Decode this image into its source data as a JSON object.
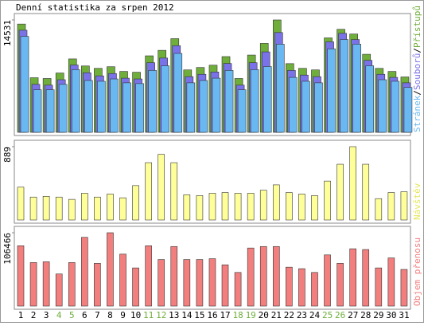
{
  "chart_data": [
    {
      "type": "bar",
      "title": "Denní statistika za srpen 2012",
      "legend_separator": "/",
      "ylim": [
        0,
        14531
      ],
      "yticks": [
        14531
      ],
      "series": [
        {
          "name": "Přístupů",
          "color": "#6fae3a",
          "values": [
            14000,
            7060,
            6960,
            7670,
            9490,
            8580,
            8270,
            8480,
            7870,
            7770,
            9890,
            10600,
            12110,
            8070,
            8380,
            8680,
            9790,
            6960,
            9990,
            11500,
            14531,
            8880,
            8270,
            8070,
            12210,
            13320,
            12710,
            10090,
            8270,
            7870,
            7160
          ]
        },
        {
          "name": "Souborů",
          "color": "#7a72e8",
          "values": [
            13200,
            6200,
            6100,
            6800,
            8700,
            7700,
            7300,
            7600,
            7000,
            6900,
            9000,
            9600,
            11200,
            7200,
            7500,
            7800,
            8900,
            6100,
            9000,
            10400,
            12900,
            8000,
            7400,
            7200,
            11700,
            12800,
            12000,
            9300,
            7500,
            7100,
            6400
          ]
        },
        {
          "name": "Stránek",
          "color": "#6ab8f2",
          "values": [
            12400,
            5500,
            5500,
            6200,
            8100,
            6700,
            6600,
            6900,
            6400,
            6300,
            8000,
            8600,
            10200,
            6400,
            6700,
            7000,
            8000,
            5500,
            8100,
            8500,
            11400,
            7100,
            6600,
            6400,
            10800,
            12000,
            11400,
            8600,
            6800,
            6600,
            5800
          ]
        }
      ]
    },
    {
      "type": "bar",
      "ylim": [
        0,
        889
      ],
      "yticks": [
        889
      ],
      "series": [
        {
          "name": "Návštěv",
          "color": "#ffff99",
          "label_color": "#e6e65c",
          "values": [
            398,
            278,
            287,
            278,
            250,
            324,
            278,
            315,
            269,
            417,
            695,
            796,
            695,
            306,
            296,
            324,
            333,
            324,
            324,
            361,
            426,
            333,
            315,
            296,
            472,
            676,
            889,
            676,
            259,
            333,
            343
          ]
        }
      ]
    },
    {
      "type": "bar",
      "ylim": [
        0,
        106466
      ],
      "yticks": [
        106466
      ],
      "series": [
        {
          "name": "Objem přenosu",
          "color": "#f27e7e",
          "values": [
            87600,
            63200,
            64300,
            46600,
            63200,
            99800,
            62100,
            106466,
            75400,
            55400,
            87600,
            67600,
            86500,
            67600,
            67600,
            68800,
            59900,
            48800,
            84300,
            86500,
            86500,
            56500,
            54300,
            48800,
            74300,
            62100,
            83200,
            82100,
            55400,
            69900,
            53200
          ]
        }
      ],
      "categories": [
        "1",
        "2",
        "3",
        "4",
        "5",
        "6",
        "7",
        "8",
        "9",
        "10",
        "11",
        "12",
        "13",
        "14",
        "15",
        "16",
        "17",
        "18",
        "19",
        "20",
        "21",
        "22",
        "23",
        "24",
        "25",
        "26",
        "27",
        "28",
        "29",
        "30",
        "31"
      ],
      "category_colors": [
        "#000",
        "#000",
        "#000",
        "#6fae3a",
        "#6fae3a",
        "#000",
        "#000",
        "#000",
        "#000",
        "#000",
        "#6fae3a",
        "#6fae3a",
        "#000",
        "#000",
        "#000",
        "#000",
        "#000",
        "#6fae3a",
        "#6fae3a",
        "#000",
        "#000",
        "#000",
        "#000",
        "#000",
        "#6fae3a",
        "#6fae3a",
        "#000",
        "#000",
        "#000",
        "#000",
        "#000"
      ]
    }
  ]
}
